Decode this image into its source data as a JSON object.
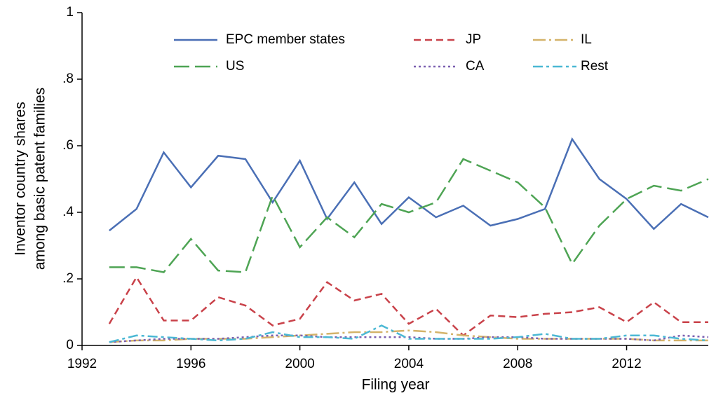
{
  "chart_data": {
    "type": "line",
    "xlabel": "Filing year",
    "ylabel": [
      "Inventor country shares",
      "among basic patent families"
    ],
    "x": [
      1993,
      1994,
      1995,
      1996,
      1997,
      1998,
      1999,
      2000,
      2001,
      2002,
      2003,
      2004,
      2005,
      2006,
      2007,
      2008,
      2009,
      2010,
      2011,
      2012,
      2013,
      2014,
      2015
    ],
    "xlim": [
      1992,
      2015
    ],
    "xticks": [
      1992,
      1996,
      2000,
      2004,
      2008,
      2012
    ],
    "ylim": [
      0,
      1
    ],
    "yticks": [
      0,
      {
        "value": 0.2,
        "label": ".2"
      },
      {
        "value": 0.4,
        "label": ".4"
      },
      {
        "value": 0.6,
        "label": ".6"
      },
      {
        "value": 0.8,
        "label": ".8"
      },
      1
    ],
    "legend": "top",
    "series": [
      {
        "name": "EPC member states",
        "color": "#4a6fb5",
        "dash": "none",
        "values": [
          0.345,
          0.41,
          0.58,
          0.475,
          0.57,
          0.56,
          0.43,
          0.555,
          0.38,
          0.49,
          0.365,
          0.445,
          0.385,
          0.42,
          0.36,
          0.38,
          0.41,
          0.62,
          0.5,
          0.44,
          0.35,
          0.425,
          0.385
        ]
      },
      {
        "name": "JP",
        "color": "#c9424a",
        "dash": "10 6",
        "values": [
          0.065,
          0.205,
          0.075,
          0.075,
          0.145,
          0.12,
          0.06,
          0.08,
          0.19,
          0.135,
          0.155,
          0.065,
          0.11,
          0.03,
          0.09,
          0.085,
          0.095,
          0.1,
          0.115,
          0.07,
          0.13,
          0.07,
          0.07
        ]
      },
      {
        "name": "IL",
        "color": "#d4b36a",
        "dash": "18 5 3 5",
        "values": [
          0.01,
          0.015,
          0.015,
          0.02,
          0.02,
          0.02,
          0.025,
          0.03,
          0.035,
          0.04,
          0.04,
          0.045,
          0.04,
          0.03,
          0.025,
          0.02,
          0.02,
          0.02,
          0.02,
          0.02,
          0.015,
          0.015,
          0.015
        ]
      },
      {
        "name": "US",
        "color": "#4ea454",
        "dash": "22 8",
        "values": [
          0.235,
          0.235,
          0.22,
          0.32,
          0.225,
          0.22,
          0.45,
          0.295,
          0.385,
          0.325,
          0.425,
          0.4,
          0.43,
          0.56,
          0.525,
          0.49,
          0.415,
          0.245,
          0.36,
          0.44,
          0.48,
          0.465,
          0.5
        ]
      },
      {
        "name": "CA",
        "color": "#7b5fb0",
        "dash": "3 4",
        "values": [
          0.01,
          0.015,
          0.02,
          0.02,
          0.02,
          0.025,
          0.03,
          0.03,
          0.025,
          0.025,
          0.025,
          0.025,
          0.02,
          0.02,
          0.025,
          0.025,
          0.02,
          0.02,
          0.02,
          0.02,
          0.015,
          0.03,
          0.025
        ]
      },
      {
        "name": "Rest",
        "color": "#4bb8d4",
        "dash": "14 5 4 5",
        "values": [
          0.01,
          0.03,
          0.025,
          0.02,
          0.015,
          0.02,
          0.04,
          0.025,
          0.025,
          0.02,
          0.06,
          0.02,
          0.02,
          0.02,
          0.02,
          0.025,
          0.035,
          0.02,
          0.02,
          0.03,
          0.03,
          0.02,
          0.015
        ]
      }
    ]
  }
}
